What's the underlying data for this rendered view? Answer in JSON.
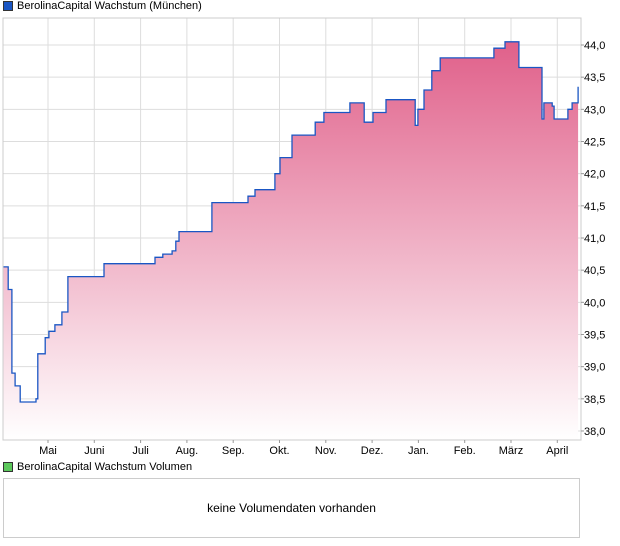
{
  "legend": {
    "price_label": "BerolinaCapital Wachstum (München)",
    "price_color": "#1a56c4",
    "volume_label": "BerolinaCapital Wachstum Volumen",
    "volume_color": "#5cc85c"
  },
  "volume": {
    "empty_text": "keine Volumendaten vorhanden"
  },
  "chart_data": {
    "type": "area",
    "title": "BerolinaCapital Wachstum (München)",
    "xlabel": "",
    "ylabel": "",
    "ylim": [
      37.85,
      44.4
    ],
    "xlim": [
      0.03,
      12.5
    ],
    "x_unit": "months (Mai = 1)",
    "y_ticks": [
      "38,0",
      "38,5",
      "39,0",
      "39,5",
      "40,0",
      "40,5",
      "41,0",
      "41,5",
      "42,0",
      "42,5",
      "43,0",
      "43,5",
      "44,0"
    ],
    "y_tick_values": [
      38,
      38.5,
      39,
      39.5,
      40,
      40.5,
      41,
      41.5,
      42,
      42.5,
      43,
      43.5,
      44
    ],
    "x_ticks": [
      "Mai",
      "Juni",
      "Juli",
      "Aug.",
      "Sep.",
      "Okt.",
      "Nov.",
      "Dez.",
      "Jan.",
      "Feb.",
      "März",
      "April"
    ],
    "x_tick_values": [
      1,
      2,
      3,
      4,
      5,
      6,
      7,
      8,
      9,
      10,
      11,
      12
    ],
    "grid": true,
    "line_color": "#1a56c4",
    "fill_top_color": "#e0608a",
    "points": [
      [
        0.03,
        40.55
      ],
      [
        0.14,
        40.2
      ],
      [
        0.22,
        38.9
      ],
      [
        0.29,
        38.7
      ],
      [
        0.4,
        38.45
      ],
      [
        0.68,
        38.45
      ],
      [
        0.74,
        38.5
      ],
      [
        0.78,
        39.2
      ],
      [
        0.94,
        39.45
      ],
      [
        1.02,
        39.55
      ],
      [
        1.15,
        39.65
      ],
      [
        1.3,
        39.85
      ],
      [
        1.43,
        40.4
      ],
      [
        2.17,
        40.4
      ],
      [
        2.21,
        40.6
      ],
      [
        3.25,
        40.6
      ],
      [
        3.31,
        40.7
      ],
      [
        3.48,
        40.75
      ],
      [
        3.68,
        40.8
      ],
      [
        3.76,
        40.95
      ],
      [
        3.83,
        41.1
      ],
      [
        4.43,
        41.1
      ],
      [
        4.54,
        41.55
      ],
      [
        5.23,
        41.55
      ],
      [
        5.32,
        41.65
      ],
      [
        5.47,
        41.75
      ],
      [
        5.79,
        41.75
      ],
      [
        5.9,
        42.0
      ],
      [
        6.01,
        42.25
      ],
      [
        6.23,
        42.25
      ],
      [
        6.27,
        42.6
      ],
      [
        6.7,
        42.6
      ],
      [
        6.77,
        42.8
      ],
      [
        6.96,
        42.95
      ],
      [
        7.46,
        42.95
      ],
      [
        7.52,
        43.1
      ],
      [
        7.76,
        43.1
      ],
      [
        7.83,
        42.8
      ],
      [
        7.95,
        42.8
      ],
      [
        8.02,
        42.95
      ],
      [
        8.26,
        42.95
      ],
      [
        8.3,
        43.15
      ],
      [
        8.88,
        43.15
      ],
      [
        8.93,
        42.75
      ],
      [
        8.99,
        43.0
      ],
      [
        9.12,
        43.3
      ],
      [
        9.29,
        43.6
      ],
      [
        9.47,
        43.8
      ],
      [
        10.57,
        43.8
      ],
      [
        10.63,
        43.95
      ],
      [
        10.87,
        44.05
      ],
      [
        11.13,
        44.05
      ],
      [
        11.17,
        43.65
      ],
      [
        11.63,
        43.65
      ],
      [
        11.67,
        42.85
      ],
      [
        11.71,
        43.1
      ],
      [
        11.89,
        43.05
      ],
      [
        11.93,
        42.85
      ],
      [
        12.17,
        42.85
      ],
      [
        12.23,
        43.0
      ],
      [
        12.32,
        43.1
      ],
      [
        12.45,
        43.35
      ]
    ]
  }
}
